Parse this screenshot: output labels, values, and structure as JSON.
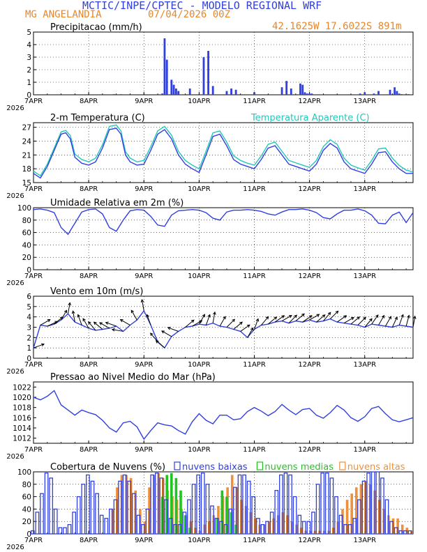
{
  "header": {
    "title": "MCTIC/INPE/CPTEC - MODELO REGIONAL WRF",
    "location": "MG ANGELANDIA",
    "run": "07/04/2026 00Z",
    "coords": "42.1625W 17.6022S 891m"
  },
  "colors": {
    "blue": "#2f3fe0",
    "orange": "#f0903a",
    "green": "#22c422",
    "cyan": "#22c8b8",
    "black": "#000000"
  },
  "x_axis": {
    "labels": [
      "7APR",
      "8APR",
      "9APR",
      "10APR",
      "11APR",
      "12APR",
      "13APR"
    ],
    "year": "2026",
    "range_hours": [
      0,
      165
    ]
  },
  "chart_data": [
    {
      "id": "precip",
      "type": "bar",
      "title": "Precipitacao (mm/h)",
      "ylim": [
        0,
        5
      ],
      "yticks": [
        "0",
        "1",
        "2",
        "3",
        "4",
        "5"
      ],
      "grid": true,
      "x": [
        35,
        38,
        56,
        57,
        58,
        60,
        61,
        62,
        63,
        68,
        74,
        76,
        78,
        84,
        86,
        88,
        96,
        108,
        110,
        112,
        116,
        117,
        118,
        119,
        120,
        121,
        142,
        144,
        148,
        150,
        155,
        157,
        158,
        159,
        160,
        163
      ],
      "values": [
        0.05,
        0.05,
        0.1,
        4.5,
        2.8,
        1.2,
        0.8,
        0.5,
        0.3,
        0.5,
        3.0,
        3.5,
        0.7,
        0.3,
        0.5,
        0.4,
        0.2,
        0.6,
        1.1,
        0.5,
        0.9,
        0.8,
        0.2,
        0.1,
        0.1,
        0.1,
        0.1,
        0.2,
        0.1,
        0.3,
        0.4,
        0.6,
        0.3,
        0.1,
        0.05,
        0.05
      ]
    },
    {
      "id": "temp",
      "type": "line",
      "title": "2-m Temperatura (C)",
      "title2": "Temperatura Aparente (C)",
      "ylim": [
        15,
        28
      ],
      "yticks": [
        "15",
        "18",
        "21",
        "24",
        "27"
      ],
      "grid": true,
      "x": [
        0,
        3,
        6,
        9,
        12,
        14,
        16,
        18,
        21,
        24,
        27,
        30,
        33,
        36,
        38,
        40,
        42,
        45,
        48,
        51,
        54,
        57,
        60,
        63,
        66,
        69,
        72,
        75,
        78,
        81,
        84,
        87,
        90,
        93,
        96,
        99,
        102,
        105,
        108,
        111,
        114,
        117,
        120,
        123,
        126,
        129,
        132,
        135,
        138,
        141,
        144,
        147,
        150,
        153,
        156,
        159,
        162,
        165
      ],
      "series": [
        {
          "name": "Temperatura (C)",
          "values": [
            17.0,
            16.0,
            18.5,
            22.0,
            25.5,
            25.8,
            24.5,
            20.5,
            19.2,
            18.8,
            19.5,
            22.5,
            26.5,
            26.8,
            25.5,
            21.0,
            19.5,
            18.8,
            19.0,
            22.0,
            25.5,
            26.5,
            24.5,
            21.0,
            19.0,
            18.0,
            17.2,
            21.0,
            25.0,
            25.5,
            23.0,
            20.0,
            19.0,
            18.5,
            18.0,
            20.0,
            22.5,
            23.0,
            21.0,
            19.0,
            18.5,
            18.0,
            17.5,
            19.0,
            22.0,
            23.5,
            22.5,
            19.5,
            18.0,
            17.5,
            17.0,
            19.0,
            21.5,
            21.7,
            19.5,
            18.0,
            17.0,
            17.0
          ]
        },
        {
          "name": "Temperatura Aparente (C)",
          "values": [
            17.5,
            16.5,
            19.0,
            22.5,
            26.0,
            26.3,
            25.2,
            21.2,
            20.0,
            19.5,
            20.3,
            23.2,
            27.2,
            27.5,
            26.2,
            21.7,
            20.3,
            19.5,
            19.8,
            22.8,
            26.2,
            27.2,
            25.3,
            21.8,
            19.8,
            18.8,
            18.0,
            21.8,
            25.8,
            26.2,
            23.8,
            20.8,
            19.8,
            19.2,
            18.8,
            20.8,
            23.3,
            23.8,
            21.8,
            19.8,
            19.3,
            18.8,
            18.3,
            19.8,
            22.8,
            24.3,
            23.3,
            20.3,
            18.8,
            18.2,
            17.7,
            19.8,
            22.3,
            22.5,
            20.3,
            18.7,
            17.7,
            17.3
          ]
        }
      ]
    },
    {
      "id": "rh",
      "type": "line",
      "title": "Umidade Relativa em 2m (%)",
      "ylim": [
        0,
        100
      ],
      "yticks": [
        "0",
        "20",
        "40",
        "60",
        "80",
        "100"
      ],
      "grid": true,
      "x": [
        0,
        3,
        6,
        9,
        12,
        15,
        18,
        21,
        24,
        27,
        30,
        33,
        36,
        39,
        42,
        45,
        48,
        51,
        54,
        57,
        60,
        63,
        66,
        69,
        72,
        75,
        78,
        81,
        84,
        87,
        90,
        93,
        96,
        99,
        102,
        105,
        108,
        111,
        114,
        117,
        120,
        123,
        126,
        129,
        132,
        135,
        138,
        141,
        144,
        147,
        150,
        153,
        156,
        159,
        162,
        165
      ],
      "series": [
        {
          "name": "Umidade Relativa",
          "values": [
            97,
            98,
            96,
            92,
            68,
            57,
            75,
            93,
            97,
            98,
            90,
            68,
            62,
            80,
            95,
            97,
            96,
            86,
            72,
            70,
            88,
            95,
            96,
            97,
            96,
            92,
            83,
            80,
            93,
            96,
            96,
            97,
            96,
            94,
            90,
            88,
            93,
            97,
            97,
            98,
            96,
            92,
            84,
            82,
            90,
            96,
            96,
            98,
            95,
            88,
            75,
            74,
            88,
            93,
            76,
            92
          ]
        }
      ]
    },
    {
      "id": "wind",
      "type": "line",
      "title": "Vento em 10m (m/s)",
      "ylim": [
        0,
        6
      ],
      "yticks": [
        "0",
        "1",
        "2",
        "3",
        "4",
        "5",
        "6"
      ],
      "grid": true,
      "x": [
        0,
        3,
        6,
        9,
        12,
        15,
        18,
        21,
        24,
        27,
        30,
        33,
        36,
        39,
        42,
        45,
        48,
        51,
        54,
        57,
        60,
        63,
        66,
        69,
        72,
        75,
        78,
        81,
        84,
        87,
        90,
        93,
        96,
        99,
        102,
        105,
        108,
        111,
        114,
        117,
        120,
        123,
        126,
        129,
        132,
        135,
        138,
        141,
        144,
        147,
        150,
        153,
        156,
        159,
        162,
        165
      ],
      "series": [
        {
          "name": "Velocidade do vento",
          "values": [
            1.0,
            3.2,
            3.1,
            3.3,
            3.7,
            4.3,
            3.5,
            3.2,
            2.9,
            2.7,
            2.8,
            2.9,
            3.1,
            2.6,
            3.2,
            3.7,
            4.6,
            3.2,
            1.6,
            1.0,
            2.1,
            2.6,
            3.0,
            3.1,
            3.3,
            3.2,
            3.4,
            3.1,
            3.0,
            2.8,
            2.6,
            2.0,
            2.8,
            3.2,
            3.3,
            3.5,
            3.6,
            3.4,
            3.6,
            3.5,
            3.7,
            3.5,
            3.6,
            3.8,
            3.5,
            3.4,
            3.3,
            3.2,
            3.0,
            3.3,
            3.2,
            3.1,
            3.0,
            3.2,
            3.1,
            3.0
          ]
        }
      ]
    },
    {
      "id": "mslp",
      "type": "line",
      "title": "Pressao ao Nivel Medio do Mar (hPa)",
      "ylim": [
        1011,
        1023
      ],
      "yticks": [
        "1012",
        "1014",
        "1016",
        "1018",
        "1020",
        "1022"
      ],
      "grid": false,
      "x": [
        0,
        3,
        6,
        9,
        12,
        15,
        18,
        21,
        24,
        27,
        30,
        33,
        36,
        39,
        42,
        45,
        48,
        51,
        54,
        57,
        60,
        63,
        66,
        69,
        72,
        75,
        78,
        81,
        84,
        87,
        90,
        93,
        96,
        99,
        102,
        105,
        108,
        111,
        114,
        117,
        120,
        123,
        126,
        129,
        132,
        135,
        138,
        141,
        144,
        147,
        150,
        153,
        156,
        159,
        162,
        165
      ],
      "series": [
        {
          "name": "Pressao",
          "values": [
            1020,
            1019.5,
            1020.2,
            1021.3,
            1018.5,
            1017.5,
            1016.5,
            1017.5,
            1017,
            1016.6,
            1015.5,
            1014,
            1013.2,
            1015,
            1015.3,
            1014.2,
            1011.8,
            1013.5,
            1015,
            1014.6,
            1014.4,
            1013.5,
            1012.8,
            1015.2,
            1016.8,
            1015.5,
            1014.8,
            1016.5,
            1016.5,
            1015.6,
            1015.8,
            1017.2,
            1018,
            1017.3,
            1016.4,
            1017.2,
            1018.6,
            1017.5,
            1016.6,
            1017.6,
            1017.8,
            1016.5,
            1015.9,
            1017,
            1018.4,
            1017.5,
            1016,
            1015.3,
            1016.2,
            1017.8,
            1018.2,
            1016.8,
            1015.6,
            1015.2,
            1015.6,
            1016
          ]
        }
      ]
    },
    {
      "id": "clouds",
      "type": "bar",
      "title": "Cobertura de Nuvens (%)",
      "legend": [
        "nuvens baixas",
        "nuvens medias",
        "nuvens altas"
      ],
      "ylim": [
        0,
        100
      ],
      "yticks": [
        "0",
        "20",
        "40",
        "60",
        "80",
        "100"
      ],
      "grid": true,
      "x": [
        0,
        2,
        4,
        6,
        8,
        10,
        12,
        14,
        16,
        18,
        20,
        22,
        24,
        26,
        28,
        30,
        32,
        34,
        36,
        38,
        40,
        42,
        44,
        46,
        48,
        50,
        52,
        54,
        56,
        58,
        60,
        62,
        64,
        66,
        68,
        70,
        72,
        74,
        76,
        78,
        80,
        82,
        84,
        86,
        88,
        90,
        92,
        94,
        96,
        98,
        100,
        102,
        104,
        106,
        108,
        110,
        112,
        114,
        116,
        118,
        120,
        122,
        124,
        126,
        128,
        130,
        132,
        134,
        136,
        138,
        140,
        142,
        144,
        146,
        148,
        150,
        152,
        154,
        156,
        158,
        160,
        162,
        164
      ],
      "series": [
        {
          "name": "nuvens baixas",
          "values": [
            5,
            35,
            65,
            98,
            90,
            40,
            10,
            10,
            15,
            35,
            60,
            80,
            95,
            85,
            65,
            30,
            25,
            40,
            55,
            85,
            95,
            85,
            65,
            30,
            15,
            40,
            95,
            98,
            90,
            55,
            25,
            15,
            15,
            35,
            55,
            80,
            95,
            98,
            80,
            45,
            25,
            20,
            15,
            40,
            75,
            95,
            95,
            85,
            60,
            25,
            15,
            20,
            35,
            70,
            95,
            98,
            95,
            60,
            30,
            20,
            20,
            35,
            80,
            98,
            98,
            90,
            60,
            30,
            15,
            15,
            25,
            55,
            85,
            98,
            100,
            100,
            90,
            55,
            20,
            10,
            5,
            5,
            5
          ]
        },
        {
          "name": "nuvens medias",
          "values": [
            0,
            0,
            0,
            0,
            0,
            0,
            0,
            0,
            0,
            0,
            0,
            0,
            0,
            0,
            0,
            0,
            0,
            0,
            0,
            0,
            0,
            0,
            0,
            0,
            0,
            0,
            0,
            0,
            60,
            95,
            98,
            90,
            70,
            30,
            10,
            0,
            0,
            0,
            0,
            0,
            25,
            70,
            60,
            35,
            15,
            0,
            0,
            0,
            0,
            0,
            0,
            0,
            0,
            0,
            0,
            0,
            0,
            0,
            0,
            0,
            0,
            0,
            0,
            0,
            0,
            0,
            0,
            0,
            0,
            0,
            0,
            0,
            0,
            0,
            0,
            0,
            0,
            0,
            0,
            0,
            0,
            0,
            0
          ]
        },
        {
          "name": "nuvens altas",
          "values": [
            0,
            0,
            0,
            0,
            0,
            0,
            0,
            0,
            0,
            0,
            0,
            0,
            0,
            0,
            0,
            0,
            0,
            40,
            75,
            95,
            95,
            90,
            70,
            40,
            20,
            75,
            95,
            98,
            90,
            70,
            60,
            55,
            40,
            30,
            20,
            10,
            5,
            15,
            20,
            30,
            45,
            60,
            75,
            95,
            75,
            55,
            45,
            35,
            25,
            15,
            15,
            20,
            25,
            30,
            35,
            30,
            20,
            15,
            10,
            5,
            5,
            5,
            5,
            5,
            5,
            10,
            20,
            40,
            55,
            65,
            75,
            80,
            85,
            80,
            70,
            55,
            40,
            30,
            25,
            25,
            15,
            10,
            5
          ]
        }
      ]
    }
  ]
}
